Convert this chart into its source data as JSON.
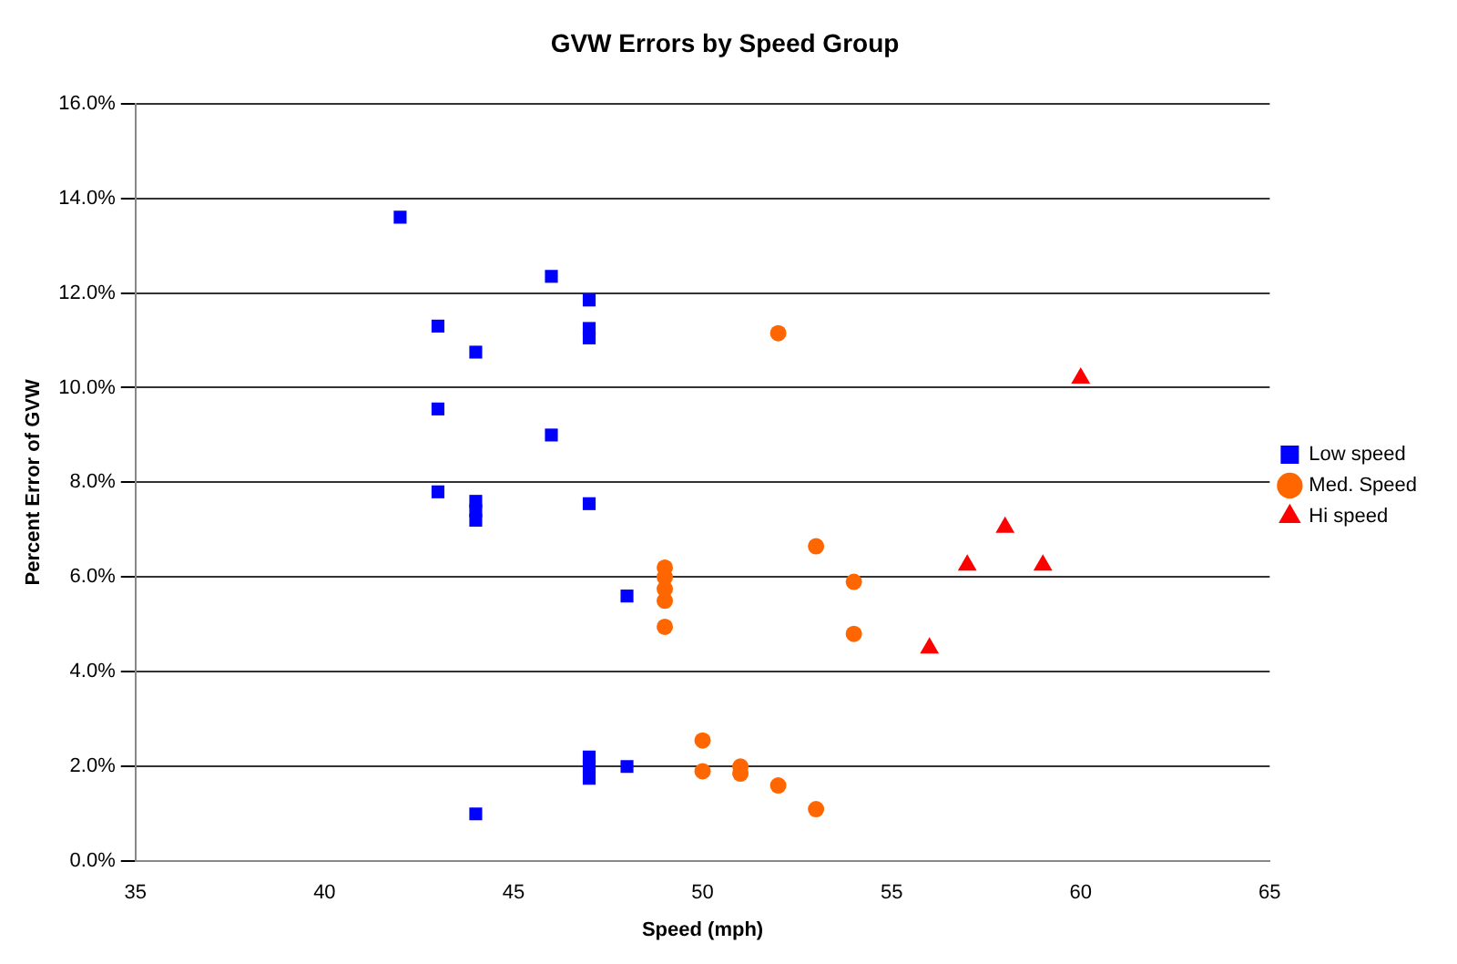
{
  "chart_data": {
    "type": "scatter",
    "title": "GVW Errors by Speed Group",
    "xlabel": "Speed (mph)",
    "ylabel": "Percent Error of GVW",
    "series": [
      {
        "name": "Low speed",
        "color": "#0000ff",
        "marker": "square",
        "x": [
          42,
          43,
          43,
          43,
          44,
          44,
          44,
          44,
          44,
          46,
          46,
          47,
          47,
          47,
          47,
          47,
          47,
          47,
          48,
          48
        ],
        "values": [
          13.6,
          11.3,
          9.55,
          7.8,
          10.75,
          7.6,
          7.4,
          7.2,
          1.0,
          12.35,
          9.0,
          11.85,
          11.25,
          11.05,
          7.55,
          2.2,
          2.0,
          1.75,
          5.6,
          2.0
        ]
      },
      {
        "name": "Med. Speed",
        "color": "#ff6600",
        "marker": "circle",
        "x": [
          49,
          49,
          49,
          49,
          49,
          50,
          50,
          51,
          51,
          52,
          52,
          53,
          53,
          54,
          54
        ],
        "values": [
          6.2,
          6.0,
          5.75,
          5.5,
          4.95,
          2.55,
          1.9,
          2.0,
          1.85,
          11.15,
          1.6,
          6.65,
          1.1,
          5.9,
          4.8
        ]
      },
      {
        "name": "Hi speed",
        "color": "#ff0000",
        "marker": "triangle",
        "x": [
          56,
          57,
          58,
          59,
          60
        ],
        "values": [
          4.5,
          6.25,
          7.05,
          6.25,
          10.2
        ]
      }
    ],
    "xlim": [
      35,
      65
    ],
    "xticks": [
      35,
      40,
      45,
      50,
      55,
      60,
      65
    ],
    "ylim": [
      0,
      16
    ],
    "yticks": [
      {
        "value": 0,
        "label": "0.0%"
      },
      {
        "value": 2,
        "label": "2.0%"
      },
      {
        "value": 4,
        "label": "4.0%"
      },
      {
        "value": 6,
        "label": "6.0%"
      },
      {
        "value": 8,
        "label": "8.0%"
      },
      {
        "value": 10,
        "label": "10.0%"
      },
      {
        "value": 12,
        "label": "12.0%"
      },
      {
        "value": 14,
        "label": "14.0%"
      },
      {
        "value": 16,
        "label": "16.0%"
      }
    ],
    "grid": "y",
    "legend": "right"
  }
}
